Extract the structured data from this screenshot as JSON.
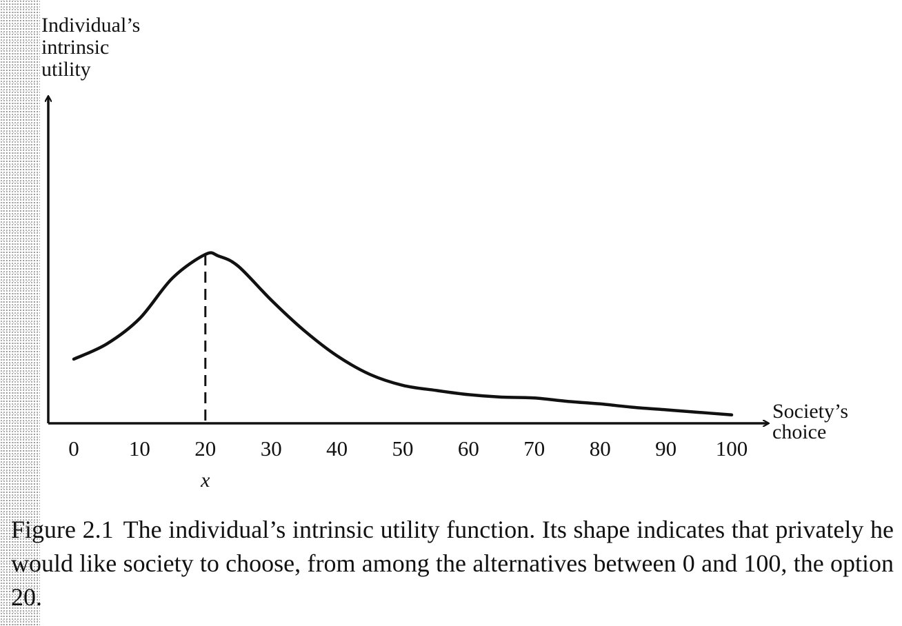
{
  "chart_data": {
    "type": "line",
    "ylabel_lines": [
      "Individual’s",
      "intrinsic",
      "utility"
    ],
    "xlabel_lines": [
      "Society’s",
      "choice"
    ],
    "x_ticks": [
      0,
      10,
      20,
      30,
      40,
      50,
      60,
      70,
      80,
      90,
      100
    ],
    "xlim": [
      0,
      100
    ],
    "marked_point": {
      "x": 20,
      "label": "x"
    },
    "series": [
      {
        "x": [
          0,
          5,
          10,
          15,
          20,
          22,
          25,
          30,
          35,
          40,
          45,
          50,
          55,
          60,
          65,
          70,
          75,
          80,
          85,
          90,
          95,
          100
        ],
        "y": [
          0.38,
          0.47,
          0.62,
          0.86,
          1.0,
          0.99,
          0.93,
          0.73,
          0.55,
          0.4,
          0.29,
          0.225,
          0.195,
          0.17,
          0.155,
          0.15,
          0.13,
          0.115,
          0.095,
          0.08,
          0.065,
          0.05
        ]
      }
    ]
  },
  "caption": {
    "label": "Figure 2.1",
    "text": "The individual’s intrinsic utility function. Its shape indicates that privately he would like society to choose, from among the alternatives between 0 and 100, the option 20."
  }
}
